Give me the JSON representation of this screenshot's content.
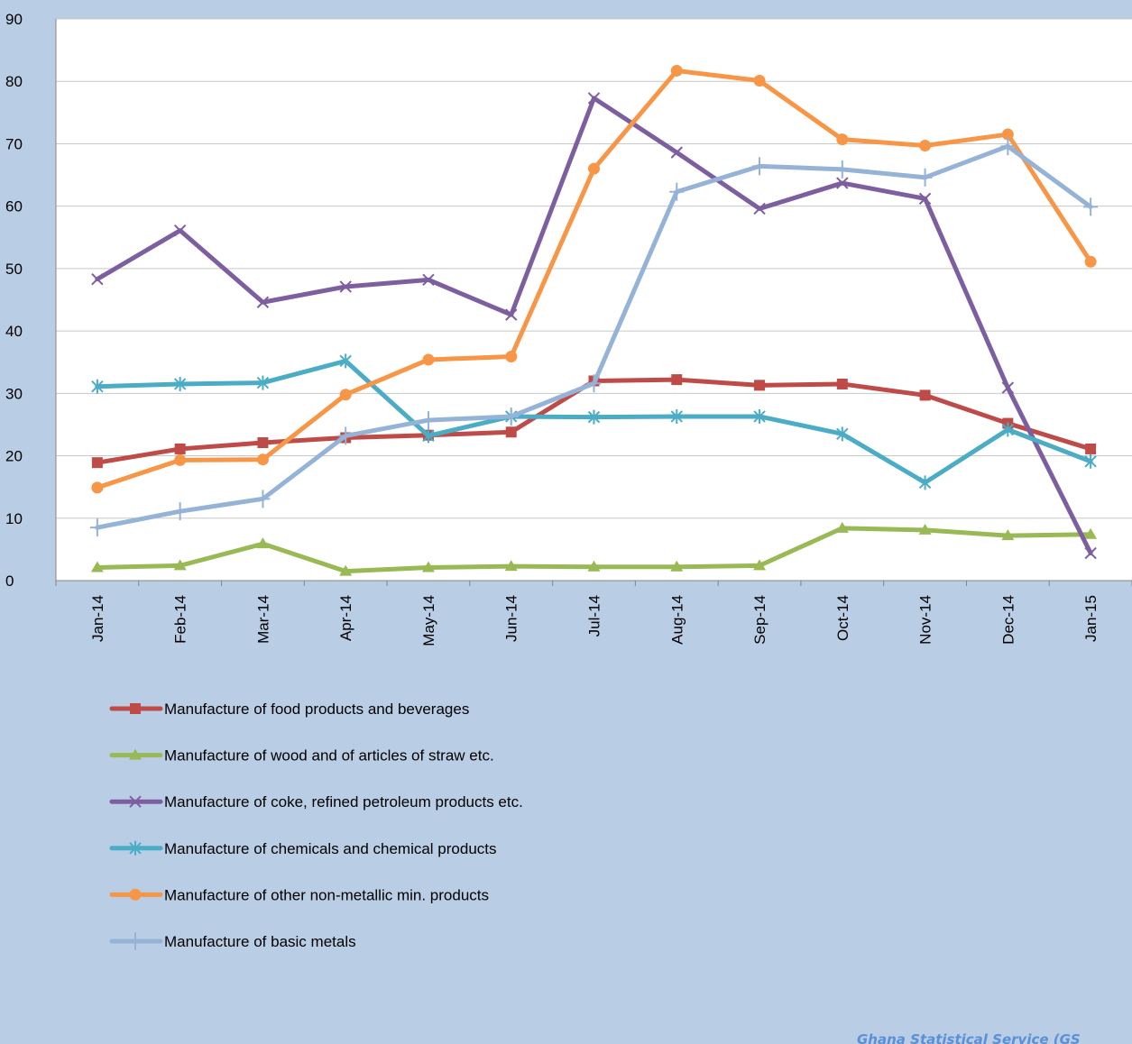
{
  "chart_data": {
    "type": "line",
    "title": "",
    "xlabel": "",
    "ylabel": "",
    "ylim": [
      0,
      90
    ],
    "y_ticks": [
      0,
      10,
      20,
      30,
      40,
      50,
      60,
      70,
      80,
      90
    ],
    "grid": "horizontal",
    "legend_position": "bottom",
    "categories": [
      "Jan-14",
      "Feb-14",
      "Mar-14",
      "Apr-14",
      "May-14",
      "Jun-14",
      "Jul-14",
      "Aug-14",
      "Sep-14",
      "Oct-14",
      "Nov-14",
      "Dec-14",
      "Jan-15"
    ],
    "series": [
      {
        "name": "Manufacture of food products and beverages",
        "color": "#be4b48",
        "marker": "square",
        "values": [
          18.9,
          21.1,
          22.1,
          22.9,
          23.3,
          23.8,
          32.0,
          32.2,
          31.3,
          31.5,
          29.7,
          25.2,
          21.1
        ]
      },
      {
        "name": "Manufacture of wood and of articles of straw etc.",
        "color": "#98b954",
        "marker": "triangle",
        "values": [
          2.1,
          2.4,
          5.9,
          1.5,
          2.1,
          2.3,
          2.2,
          2.2,
          2.4,
          8.4,
          8.1,
          7.2,
          7.4
        ]
      },
      {
        "name": "Manufacture of coke, refined petroleum products etc.",
        "color": "#7d5fa0",
        "marker": "x",
        "values": [
          48.3,
          56.1,
          44.6,
          47.1,
          48.2,
          42.6,
          77.3,
          68.6,
          59.6,
          63.7,
          61.2,
          30.9,
          4.4
        ]
      },
      {
        "name": "Manufacture of chemicals and chemical products",
        "color": "#4aacc5",
        "marker": "star",
        "values": [
          31.1,
          31.5,
          31.7,
          35.2,
          23.2,
          26.3,
          26.2,
          26.3,
          26.3,
          23.5,
          15.7,
          24.2,
          19.1
        ]
      },
      {
        "name": "Manufacture of other non-metallic min. products",
        "color": "#f79646",
        "marker": "circle",
        "values": [
          14.9,
          19.3,
          19.4,
          29.8,
          35.4,
          35.9,
          66.0,
          81.7,
          80.1,
          70.7,
          69.7,
          71.5,
          51.1
        ]
      },
      {
        "name": "Manufacture of basic metals",
        "color": "#95b3d7",
        "marker": "plus",
        "values": [
          8.5,
          11.1,
          13.1,
          23.2,
          25.7,
          26.3,
          31.6,
          62.3,
          66.4,
          65.9,
          64.6,
          69.6,
          59.9
        ]
      }
    ],
    "source_note": "Ghana Statistical Service (GS"
  }
}
